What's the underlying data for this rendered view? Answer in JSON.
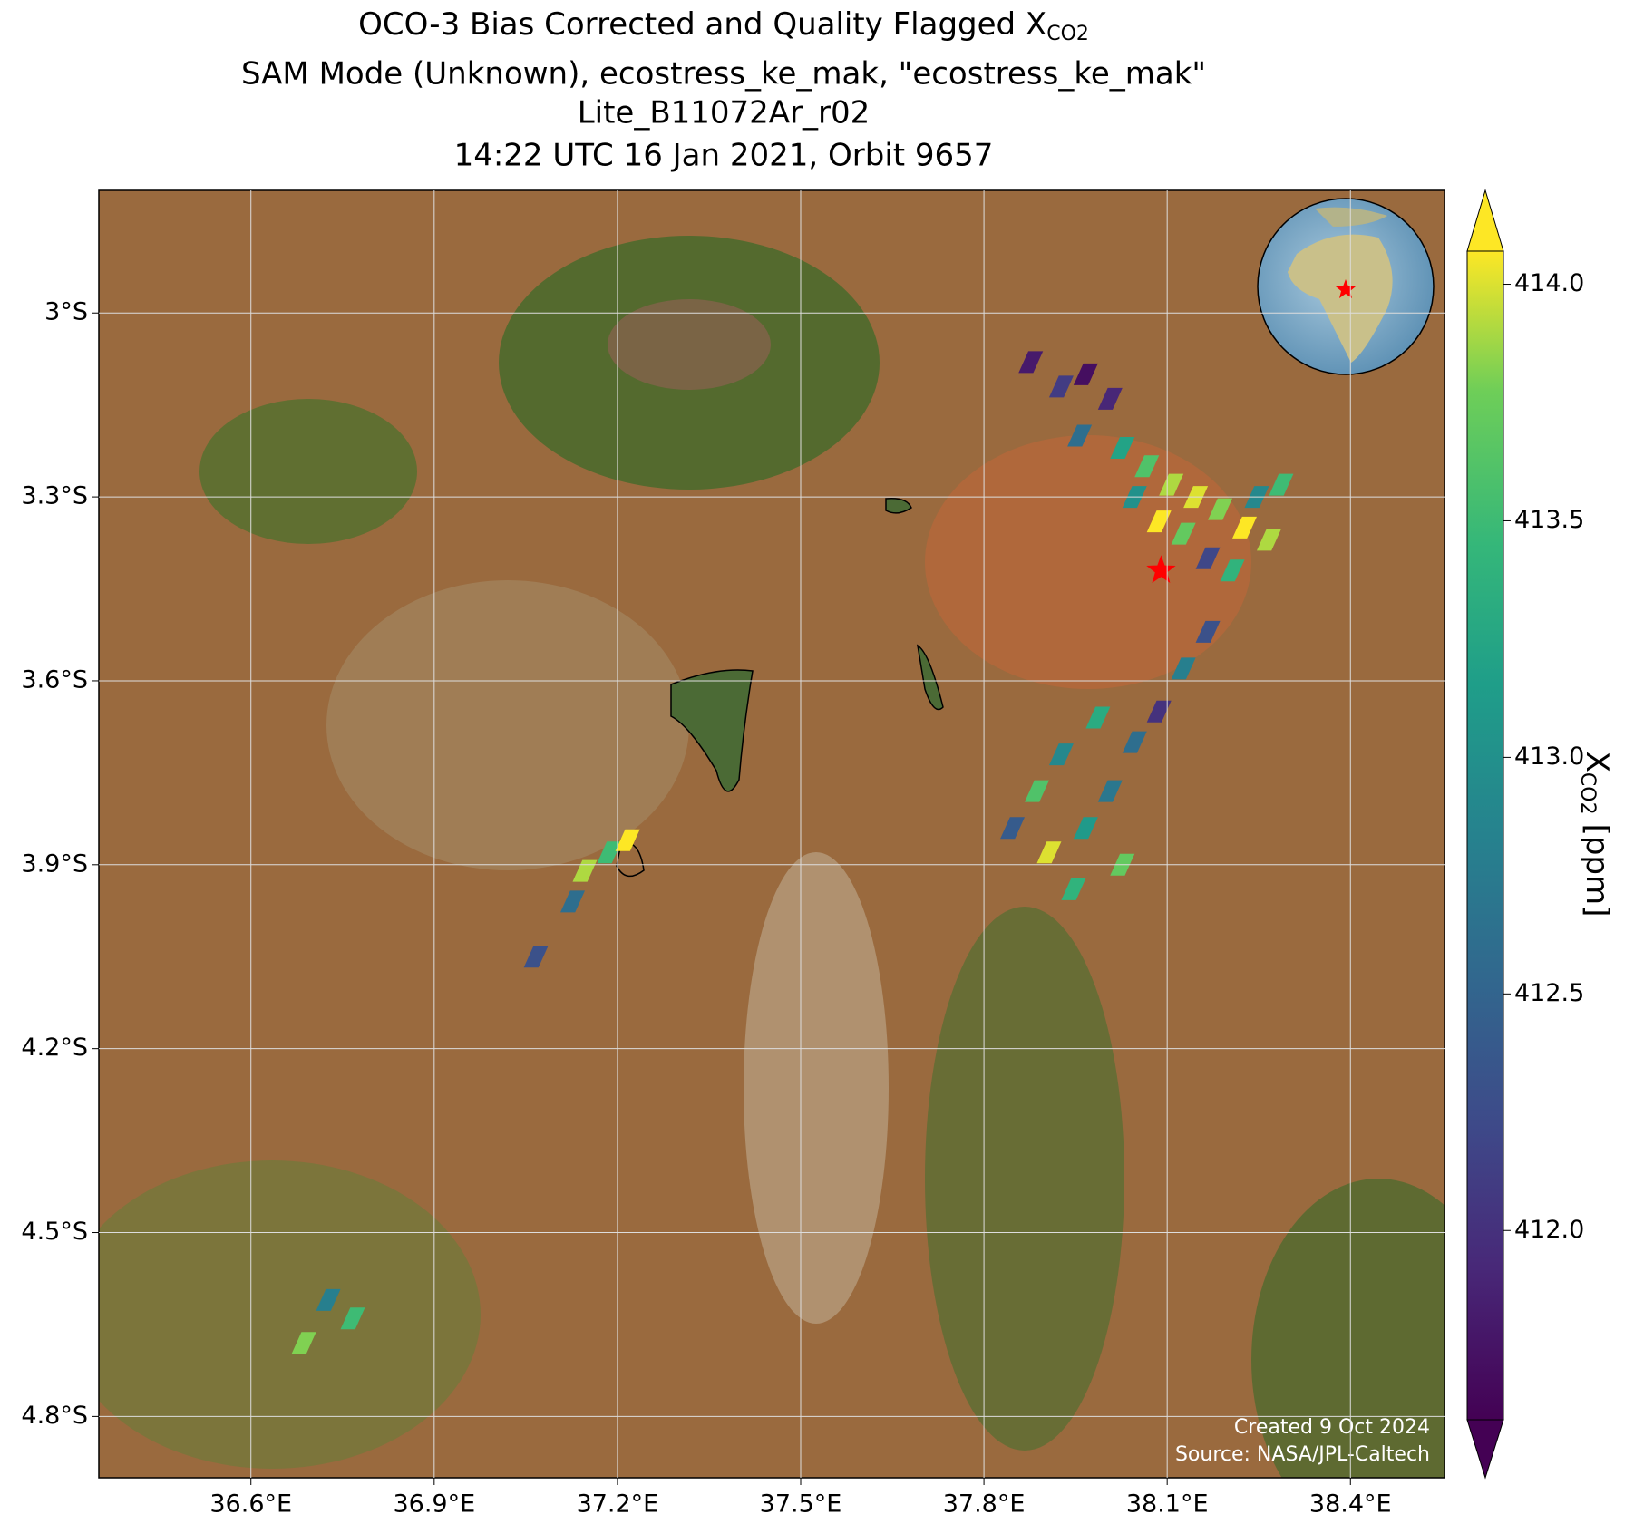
{
  "chart_data": {
    "type": "map",
    "title": [
      "OCO-3 Bias Corrected and Quality Flagged X",
      "SAM Mode (Unknown), ecostress_ke_mak, \"ecostress_ke_mak\"",
      "Lite_B11072Ar_r02",
      "14:22 UTC 16 Jan 2021, Orbit 9657"
    ],
    "title_subscript": "CO2",
    "xlim": [
      36.351,
      38.554
    ],
    "ylim": [
      -4.9,
      -2.8
    ],
    "xticks": [
      {
        "value": 36.6,
        "label": "36.6°E"
      },
      {
        "value": 36.9,
        "label": "36.9°E"
      },
      {
        "value": 37.2,
        "label": "37.2°E"
      },
      {
        "value": 37.5,
        "label": "37.5°E"
      },
      {
        "value": 37.8,
        "label": "37.8°E"
      },
      {
        "value": 38.1,
        "label": "38.1°E"
      },
      {
        "value": 38.4,
        "label": "38.4°E"
      }
    ],
    "yticks": [
      {
        "value": -3.0,
        "label": "3°S"
      },
      {
        "value": -3.3,
        "label": "3.3°S"
      },
      {
        "value": -3.6,
        "label": "3.6°S"
      },
      {
        "value": -3.9,
        "label": "3.9°S"
      },
      {
        "value": -4.2,
        "label": "4.2°S"
      },
      {
        "value": -4.5,
        "label": "4.5°S"
      },
      {
        "value": -4.8,
        "label": "4.8°S"
      }
    ],
    "grid": true,
    "colormap": "viridis",
    "clim": [
      411.6,
      414.07
    ],
    "cticks": [
      {
        "value": 412.0,
        "label": "412.0"
      },
      {
        "value": 412.5,
        "label": "412.5"
      },
      {
        "value": 413.0,
        "label": "413.0"
      },
      {
        "value": 413.5,
        "label": "413.5"
      },
      {
        "value": 414.0,
        "label": "414.0"
      }
    ],
    "colorbar_label": "X",
    "colorbar_subscript": "CO2",
    "colorbar_unit": "[ppm]",
    "target": {
      "lon": 38.09,
      "lat": -3.42,
      "color": "#ff0000"
    },
    "lon": [
      37.87,
      37.92,
      37.96,
      38.0,
      37.95,
      38.02,
      38.06,
      38.1,
      38.14,
      38.18,
      38.22,
      38.26,
      38.04,
      38.08,
      38.12,
      38.16,
      38.2,
      38.24,
      38.28,
      38.16,
      38.12,
      38.08,
      38.04,
      37.98,
      37.92,
      37.88,
      37.84,
      37.9,
      37.96,
      38.0,
      37.94,
      38.02,
      37.14,
      37.18,
      37.12,
      37.06,
      37.21,
      36.72,
      36.76,
      36.68
    ],
    "lat": [
      -3.08,
      -3.12,
      -3.1,
      -3.14,
      -3.2,
      -3.22,
      -3.25,
      -3.28,
      -3.3,
      -3.32,
      -3.35,
      -3.37,
      -3.3,
      -3.34,
      -3.36,
      -3.4,
      -3.42,
      -3.3,
      -3.28,
      -3.52,
      -3.58,
      -3.65,
      -3.7,
      -3.66,
      -3.72,
      -3.78,
      -3.84,
      -3.88,
      -3.84,
      -3.78,
      -3.94,
      -3.9,
      -3.91,
      -3.88,
      -3.96,
      -4.05,
      -3.86,
      -4.61,
      -4.64,
      -4.68
    ],
    "xco2": [
      411.8,
      412.1,
      411.7,
      411.9,
      412.6,
      413.2,
      413.6,
      413.9,
      414.0,
      413.8,
      414.1,
      413.9,
      413.0,
      414.1,
      413.7,
      412.2,
      413.4,
      412.9,
      413.5,
      412.3,
      412.8,
      412.0,
      412.6,
      413.3,
      412.9,
      413.6,
      412.4,
      414.0,
      413.1,
      412.7,
      413.4,
      413.7,
      413.9,
      413.5,
      412.6,
      412.3,
      414.1,
      412.8,
      413.5,
      413.8
    ],
    "footer": [
      "Created 9 Oct 2024",
      "Source: NASA/JPL-Caltech"
    ]
  }
}
